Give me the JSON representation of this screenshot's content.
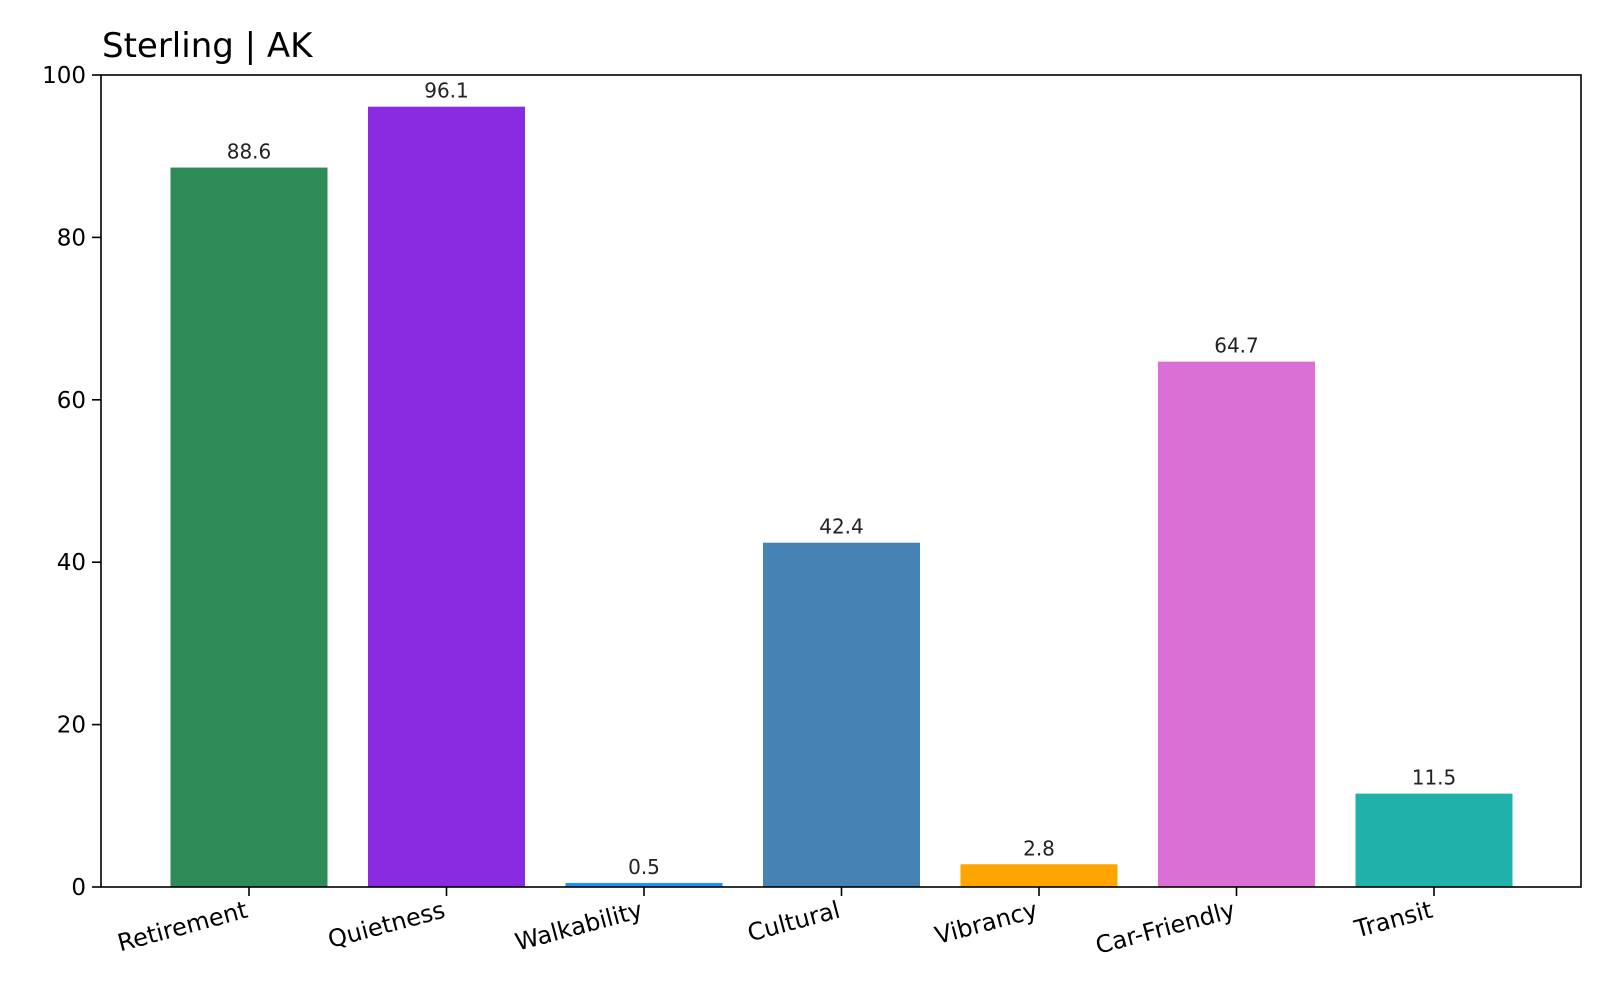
{
  "chart_data": {
    "type": "bar",
    "title": "Sterling | AK",
    "xlabel": "",
    "ylabel": "",
    "categories": [
      "Retirement",
      "Quietness",
      "Walkability",
      "Cultural",
      "Vibrancy",
      "Car-Friendly",
      "Transit"
    ],
    "values": [
      88.6,
      96.1,
      0.5,
      42.4,
      2.8,
      64.7,
      11.5
    ],
    "data_labels": [
      "88.6",
      "96.1",
      "0.5",
      "42.4",
      "2.8",
      "64.7",
      "11.5"
    ],
    "colors": [
      "#2e8b57",
      "#8a2be2",
      "#1e90ff",
      "#4682b4",
      "#ffa500",
      "#da70d6",
      "#20b2aa"
    ],
    "ylim": [
      0,
      100
    ],
    "yticks": [
      0,
      20,
      40,
      60,
      80,
      100
    ],
    "ytick_labels": [
      "0",
      "20",
      "40",
      "60",
      "80",
      "100"
    ],
    "grid": false,
    "legend": "none"
  }
}
